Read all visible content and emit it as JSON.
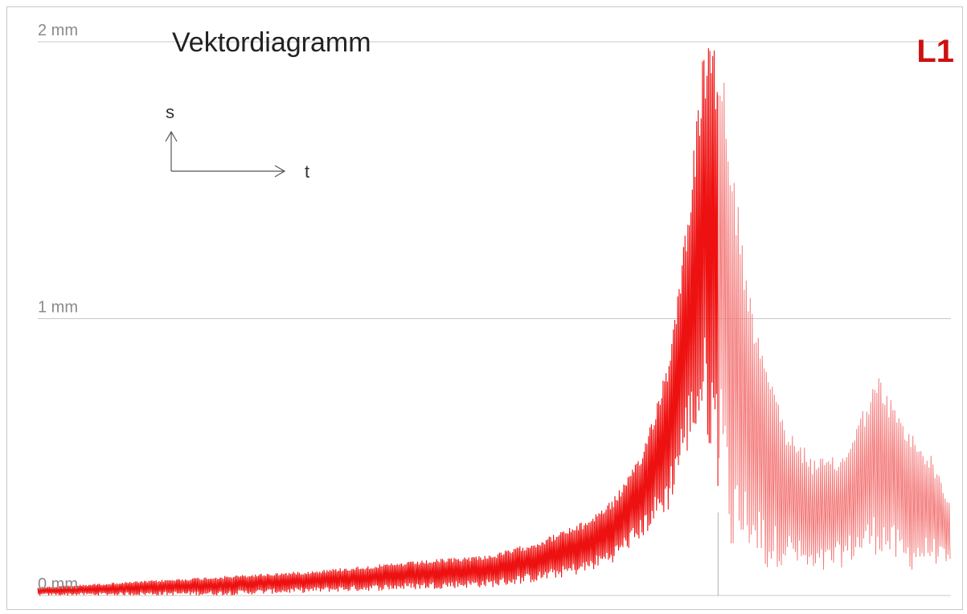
{
  "chart_data": {
    "type": "line",
    "title": "Vektordiagramm",
    "channel_label": "L1",
    "unit": "mm",
    "y_ticks": [
      {
        "value": 0,
        "label": "0 mm"
      },
      {
        "value": 1,
        "label": "1 mm"
      },
      {
        "value": 2,
        "label": "2 mm"
      }
    ],
    "ylim": [
      0,
      2
    ],
    "xlim": [
      0,
      1
    ],
    "grid": true,
    "axis_symbol": {
      "y": "s",
      "x": "t"
    },
    "colors": {
      "series_main": "#ee1111",
      "series_decay": "#f47a7a",
      "gridline": "#c8c8c8",
      "channel_label": "#cc1111",
      "marker_line": "#b0b0b0"
    },
    "envelope_t": [
      0.0,
      0.1,
      0.2,
      0.3,
      0.4,
      0.5,
      0.55,
      0.6,
      0.63,
      0.66,
      0.69,
      0.71,
      0.73,
      0.75,
      0.76,
      0.78,
      0.8,
      0.82,
      0.85,
      0.88,
      0.92,
      0.95,
      0.98,
      1.0
    ],
    "envelope_upper": [
      0.03,
      0.05,
      0.07,
      0.09,
      0.12,
      0.15,
      0.2,
      0.27,
      0.35,
      0.5,
      0.85,
      1.35,
      2.0,
      1.95,
      1.6,
      1.1,
      0.85,
      0.6,
      0.5,
      0.5,
      0.8,
      0.62,
      0.5,
      0.33
    ],
    "envelope_lower": [
      0.0,
      0.0,
      0.0,
      0.01,
      0.02,
      0.03,
      0.05,
      0.08,
      0.12,
      0.2,
      0.3,
      0.5,
      0.6,
      0.32,
      0.1,
      0.15,
      0.08,
      0.12,
      0.05,
      0.1,
      0.15,
      0.08,
      0.12,
      0.08
    ],
    "transition_t": 0.745
  }
}
